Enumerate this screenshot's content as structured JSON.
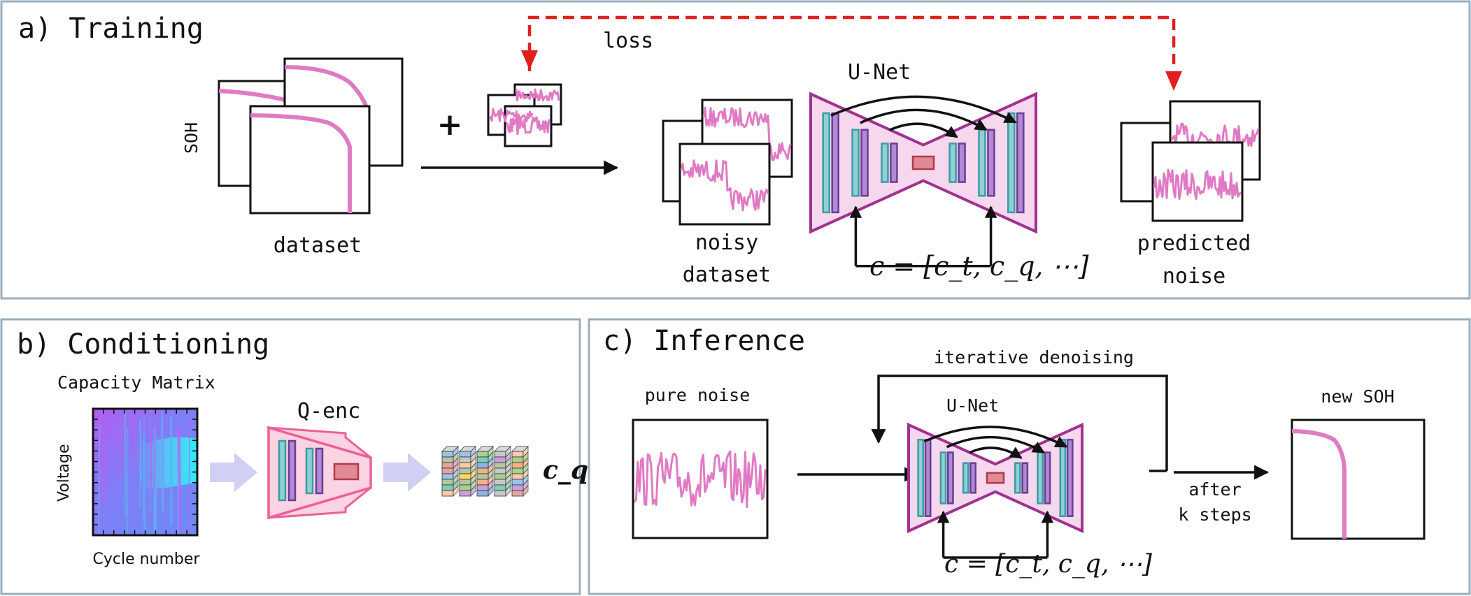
{
  "panels": {
    "training": {
      "title": "a) Training",
      "loss_label": "loss",
      "soh_axis_label": "SOH",
      "plus_symbol": "+",
      "dataset_label": "dataset",
      "noisy_dataset_label_1": "noisy",
      "noisy_dataset_label_2": "dataset",
      "unet_label": "U-Net",
      "condition_label": "c = [c_t, c_q, ⋯]",
      "predicted_noise_label_1": "predicted",
      "predicted_noise_label_2": "noise"
    },
    "conditioning": {
      "title": "b) Conditioning",
      "matrix_title": "Capacity Matrix",
      "y_axis_label": "Voltage",
      "x_axis_label": "Cycle number",
      "encoder_label": "Q-enc",
      "output_label": "c_q"
    },
    "inference": {
      "title": "c) Inference",
      "loop_label": "iterative denoising",
      "pure_noise_label": "pure noise",
      "unet_label": "U-Net",
      "condition_label": "c = [c_t, c_q, ⋯]",
      "after_label_1": "after",
      "after_label_2": "k steps",
      "new_soh_label": "new SOH"
    }
  },
  "colors": {
    "curve": "#e07ac4",
    "loss_arrow": "#e0201c",
    "panel_border": "#9aaebf",
    "unet_fill": "#f5d7ee",
    "unet_stroke": "#a0328f",
    "encoder_fill": "#fbd3e2",
    "encoder_stroke": "#ec5f98",
    "block_arrow": "#cfd0f4"
  }
}
